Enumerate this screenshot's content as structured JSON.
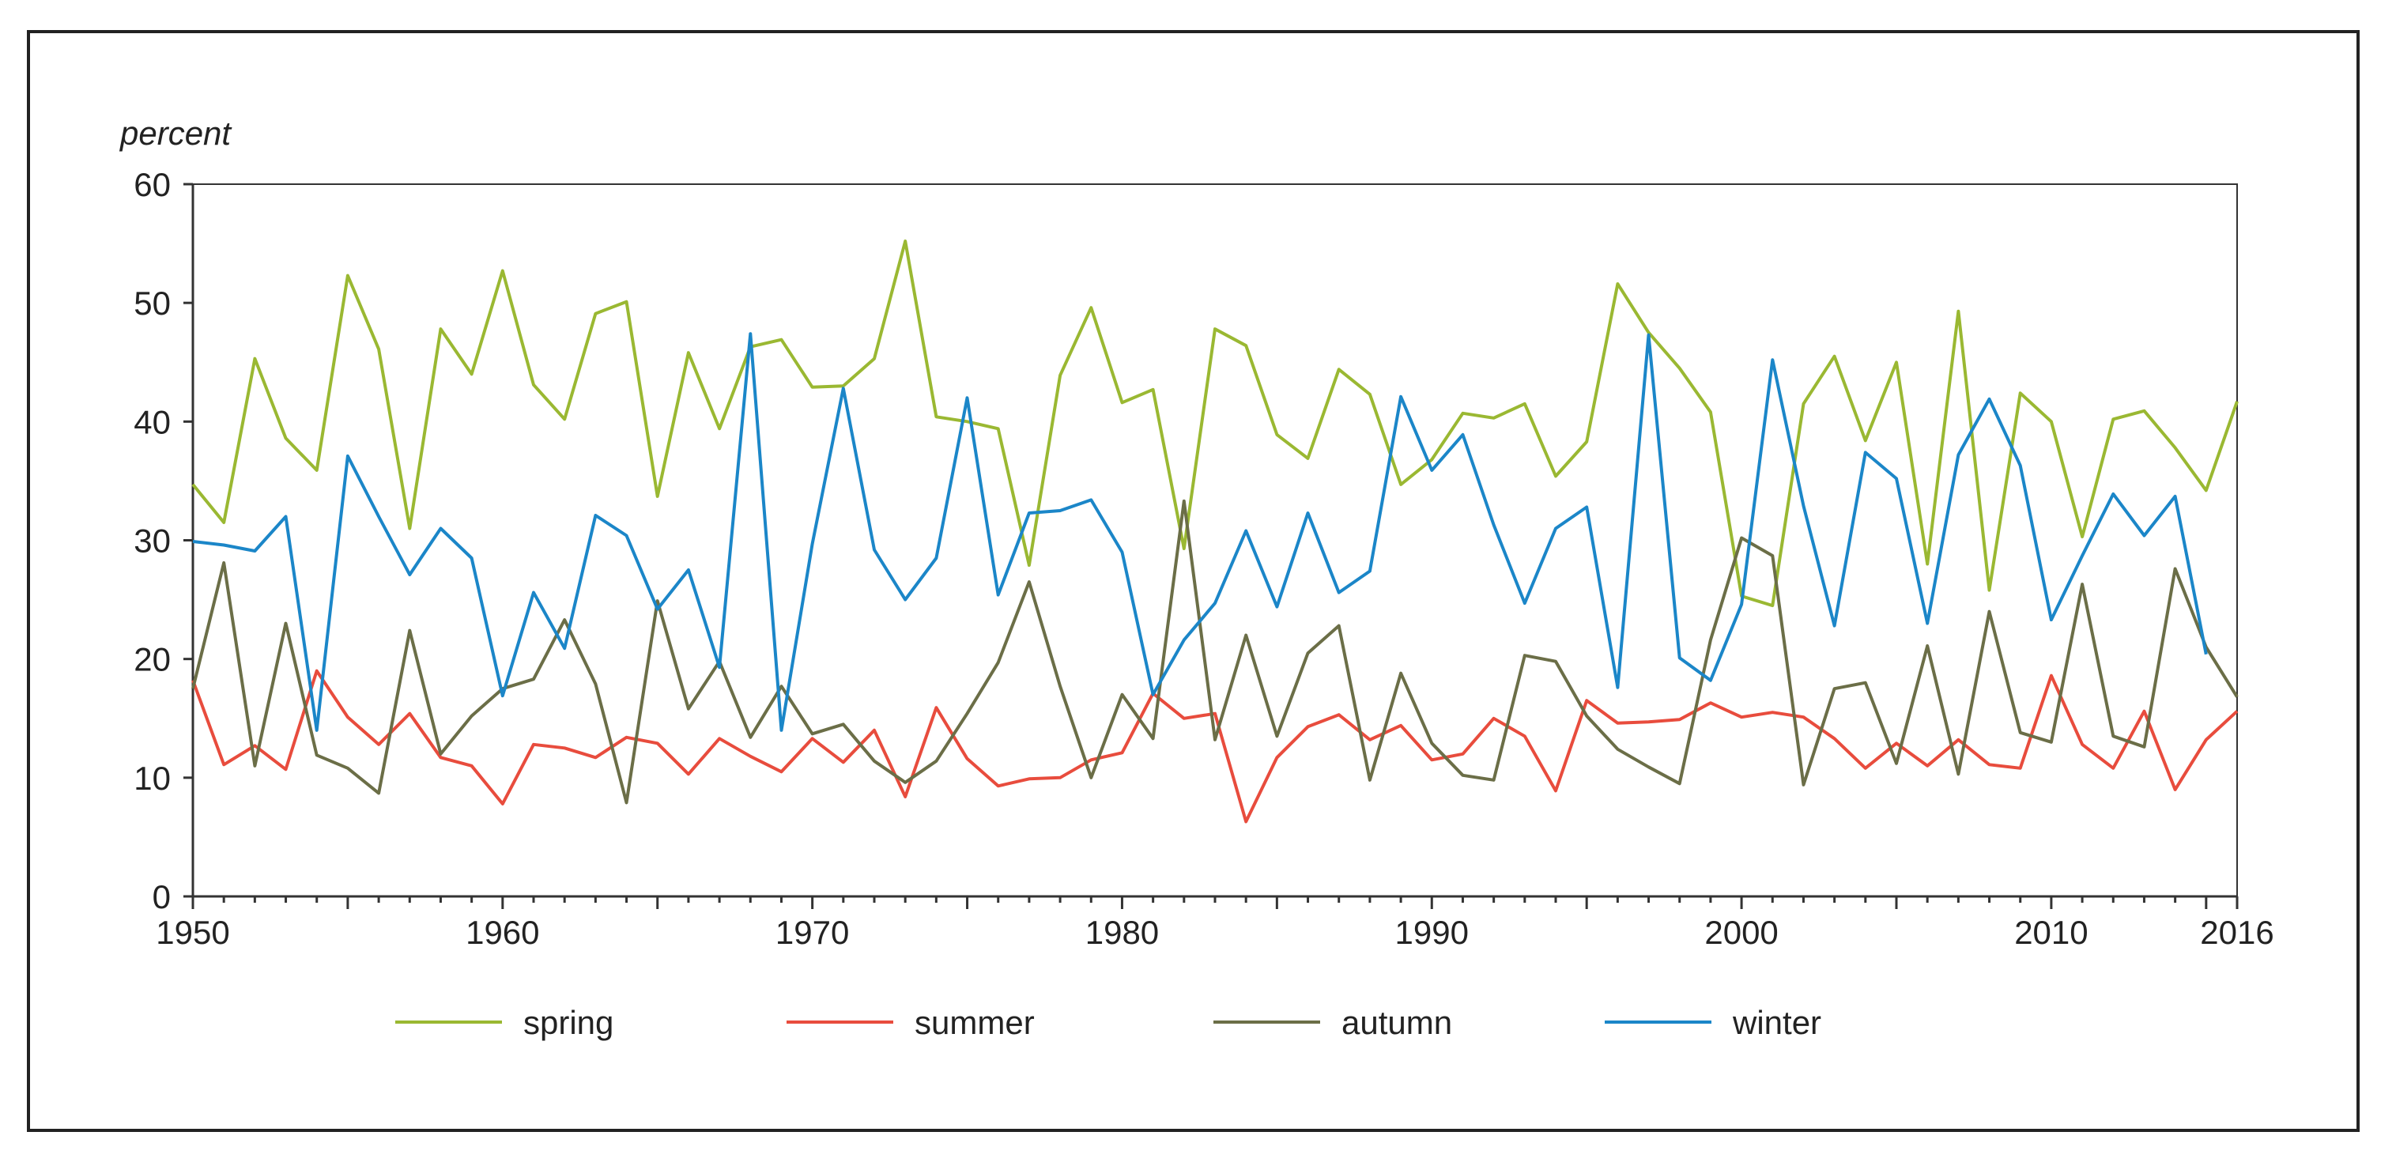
{
  "chart_data": {
    "type": "line",
    "title": "",
    "xlabel": "",
    "ylabel": "percent",
    "ylim": [
      0,
      60
    ],
    "xlim": [
      1950,
      2016
    ],
    "yticks": [
      0,
      10,
      20,
      30,
      40,
      50,
      60
    ],
    "xticks": [
      1950,
      1960,
      1970,
      1980,
      1990,
      2000,
      2010,
      2016
    ],
    "grid": false,
    "legend_position": "bottom",
    "x": [
      1950,
      1951,
      1952,
      1953,
      1954,
      1955,
      1956,
      1957,
      1958,
      1959,
      1960,
      1961,
      1962,
      1963,
      1964,
      1965,
      1966,
      1967,
      1968,
      1969,
      1970,
      1971,
      1972,
      1973,
      1974,
      1975,
      1976,
      1977,
      1978,
      1979,
      1980,
      1981,
      1982,
      1983,
      1984,
      1985,
      1986,
      1987,
      1988,
      1989,
      1990,
      1991,
      1992,
      1993,
      1994,
      1995,
      1996,
      1997,
      1998,
      1999,
      2000,
      2001,
      2002,
      2003,
      2004,
      2005,
      2006,
      2007,
      2008,
      2009,
      2010,
      2011,
      2012,
      2013,
      2014,
      2015,
      2016
    ],
    "series": [
      {
        "name": "spring",
        "color": "#9ab832",
        "values": [
          34.7,
          31.5,
          45.3,
          38.6,
          35.9,
          52.3,
          46.1,
          31.0,
          47.8,
          44.0,
          52.7,
          43.1,
          40.2,
          49.1,
          50.1,
          33.7,
          45.8,
          39.4,
          46.3,
          46.9,
          42.9,
          43.0,
          45.3,
          55.2,
          40.4,
          40.0,
          39.4,
          27.9,
          43.9,
          49.6,
          41.6,
          42.7,
          29.3,
          47.8,
          46.4,
          38.9,
          36.9,
          44.4,
          42.3,
          34.7,
          36.8,
          40.7,
          40.3,
          41.5,
          35.4,
          38.3,
          51.6,
          47.5,
          44.5,
          40.8,
          25.3,
          24.5,
          41.5,
          45.5,
          38.4,
          45.0,
          28.0,
          49.3,
          25.8,
          42.4,
          40.0,
          30.3,
          40.2,
          40.9,
          37.8,
          34.2,
          41.7
        ]
      },
      {
        "name": "summer",
        "color": "#e84c3d",
        "values": [
          18.2,
          11.1,
          12.7,
          10.7,
          19.0,
          15.1,
          12.8,
          15.4,
          11.7,
          11.0,
          7.8,
          12.8,
          12.5,
          11.7,
          13.4,
          12.9,
          10.3,
          13.3,
          11.8,
          10.5,
          13.3,
          11.3,
          14.0,
          8.4,
          15.9,
          11.6,
          9.3,
          9.9,
          10.0,
          11.5,
          12.1,
          17.1,
          15.0,
          15.4,
          6.3,
          11.7,
          14.3,
          15.3,
          13.2,
          14.4,
          11.5,
          12.0,
          15.0,
          13.5,
          8.9,
          16.5,
          14.6,
          14.7,
          14.9,
          16.3,
          15.1,
          15.5,
          15.1,
          13.3,
          10.8,
          12.9,
          11.0,
          13.2,
          11.1,
          10.8,
          18.6,
          12.8,
          10.8,
          15.6,
          9.0,
          13.2,
          15.6
        ]
      },
      {
        "name": "autumn",
        "color": "#6b6e47",
        "values": [
          17.5,
          28.1,
          11.0,
          23.0,
          11.9,
          10.8,
          8.7,
          22.4,
          12.0,
          15.2,
          17.5,
          18.3,
          23.3,
          17.9,
          7.9,
          24.9,
          15.8,
          19.8,
          13.4,
          17.7,
          13.7,
          14.5,
          11.4,
          9.6,
          11.4,
          15.4,
          19.7,
          26.5,
          17.7,
          10.0,
          17.0,
          13.3,
          33.3,
          13.2,
          22.0,
          13.5,
          20.5,
          22.8,
          9.8,
          18.8,
          12.9,
          10.2,
          9.8,
          20.3,
          19.8,
          15.2,
          12.4,
          10.9,
          9.5,
          21.6,
          30.2,
          28.7,
          9.4,
          17.5,
          18.0,
          11.2,
          21.1,
          10.3,
          24.0,
          13.8,
          13.0,
          26.3,
          13.5,
          12.6,
          27.6,
          21.0,
          16.8
        ]
      },
      {
        "name": "winter",
        "color": "#1b86c8",
        "values": [
          29.9,
          29.6,
          29.1,
          32.0,
          14.0,
          37.1,
          32.0,
          27.1,
          31.0,
          28.5,
          16.9,
          25.6,
          20.9,
          32.1,
          30.4,
          24.2,
          27.5,
          19.3,
          47.4,
          14.0,
          29.7,
          42.8,
          29.2,
          25.0,
          28.5,
          42.0,
          25.4,
          32.3,
          32.5,
          33.4,
          29.0,
          17.0,
          21.6,
          24.7,
          30.8,
          24.4,
          32.3,
          25.6,
          27.4,
          42.1,
          35.9,
          38.9,
          31.3,
          24.7,
          31.0,
          32.8,
          17.6,
          47.3,
          20.1,
          18.2,
          24.6,
          45.2,
          32.9,
          22.8,
          37.4,
          35.2,
          23.0,
          37.2,
          41.9,
          36.3,
          23.3,
          28.7,
          33.9,
          30.4,
          33.7,
          20.4,
          null
        ]
      }
    ]
  }
}
